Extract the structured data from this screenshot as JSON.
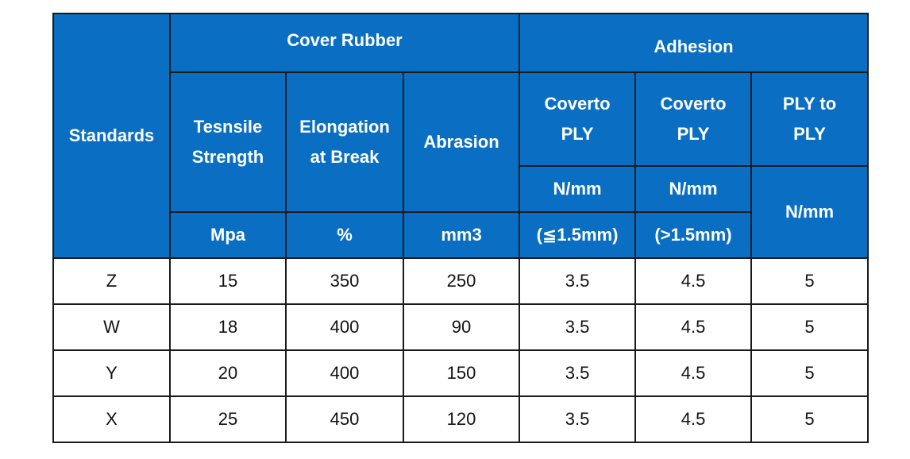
{
  "header": {
    "standards": "Standards",
    "cover_rubber": "Cover Rubber",
    "adhesion": "Adhesion",
    "tensile_line1": "Tesnsile",
    "tensile_line2": "Strength",
    "elongation_line1": "Elongation",
    "elongation_line2": "at Break",
    "abrasion": "Abrasion",
    "coverto_ply_a_line1": "Coverto",
    "coverto_ply_a_line2": "PLY",
    "coverto_ply_b_line1": "Coverto",
    "coverto_ply_b_line2": "PLY",
    "ply_to_ply_line1": "PLY to",
    "ply_to_ply_line2": "PLY",
    "unit_nmm_a": "N/mm",
    "unit_nmm_b": "N/mm",
    "unit_nmm_c": "N/mm",
    "unit_mpa": "Mpa",
    "unit_percent": "%",
    "unit_mm3": "mm3",
    "unit_le15": "(≦1.5mm)",
    "unit_gt15": "(>1.5mm)"
  },
  "rows": [
    {
      "standard": "Z",
      "tensile": "15",
      "elongation": "350",
      "abrasion": "250",
      "cover_ply_le": "3.5",
      "cover_ply_gt": "4.5",
      "ply_to_ply": "5"
    },
    {
      "standard": "W",
      "tensile": "18",
      "elongation": "400",
      "abrasion": "90",
      "cover_ply_le": "3.5",
      "cover_ply_gt": "4.5",
      "ply_to_ply": "5"
    },
    {
      "standard": "Y",
      "tensile": "20",
      "elongation": "400",
      "abrasion": "150",
      "cover_ply_le": "3.5",
      "cover_ply_gt": "4.5",
      "ply_to_ply": "5"
    },
    {
      "standard": "X",
      "tensile": "25",
      "elongation": "450",
      "abrasion": "120",
      "cover_ply_le": "3.5",
      "cover_ply_gt": "4.5",
      "ply_to_ply": "5"
    }
  ],
  "colors": {
    "header_bg": "#0a6fc2",
    "header_text": "#ffffff",
    "border": "#1a1a1a"
  }
}
